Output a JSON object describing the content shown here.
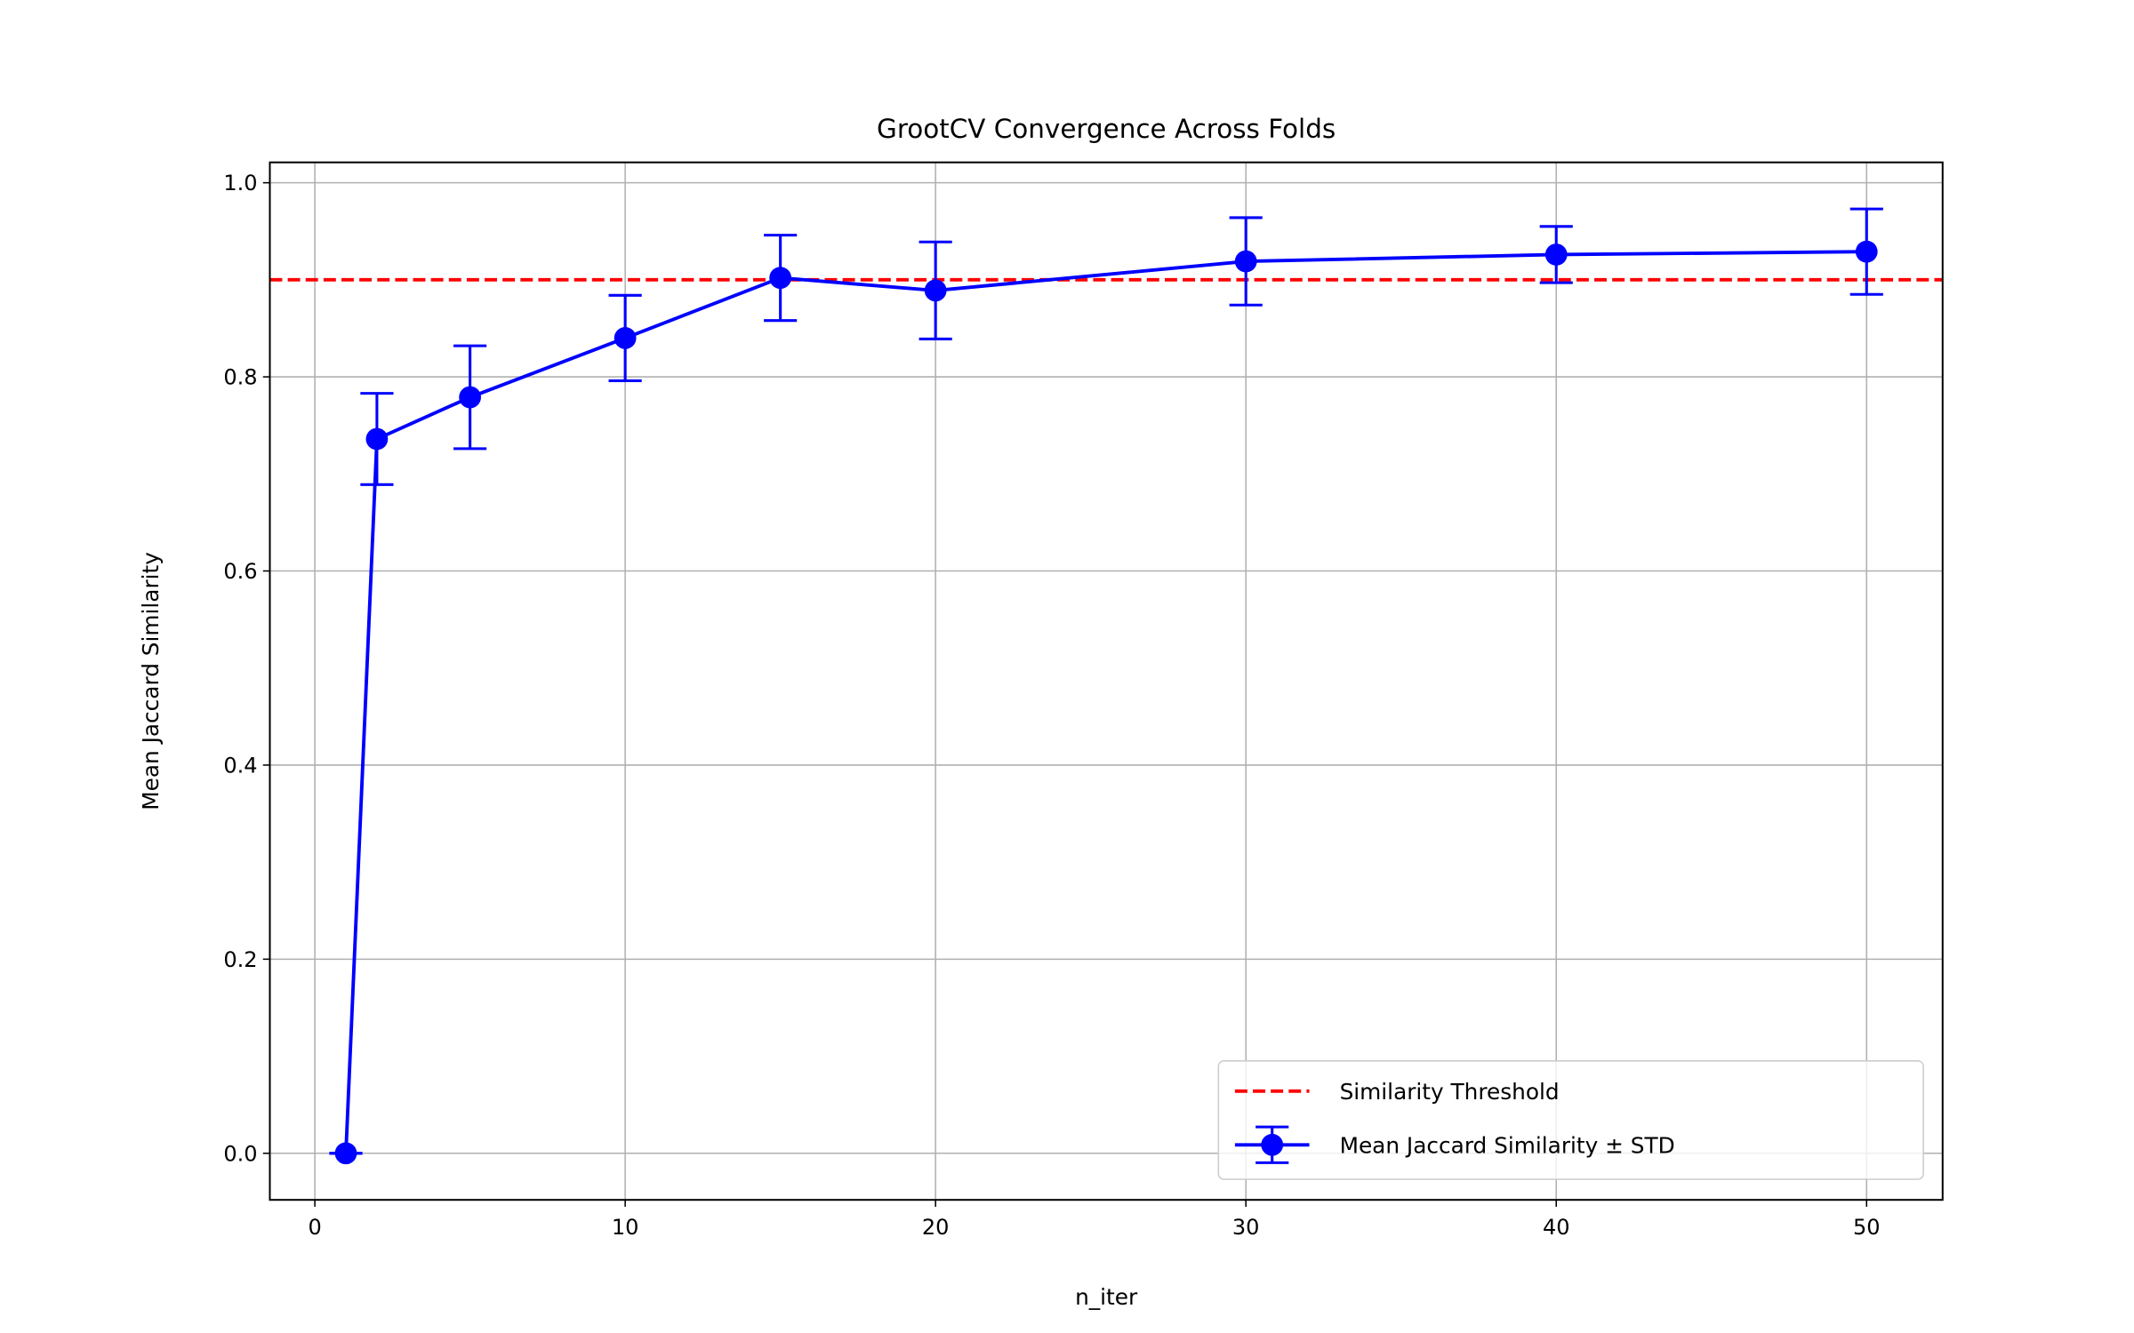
{
  "chart_data": {
    "type": "line",
    "title": "GrootCV Convergence Across Folds",
    "xlabel": "n_iter",
    "ylabel": "Mean Jaccard Similarity",
    "xlim": [
      -1.45,
      52.45
    ],
    "ylim": [
      -0.048,
      1.021
    ],
    "xticks": [
      0,
      10,
      20,
      30,
      40,
      50
    ],
    "xtick_labels": [
      "0",
      "10",
      "20",
      "30",
      "40",
      "50"
    ],
    "yticks": [
      0.0,
      0.2,
      0.4,
      0.6,
      0.8,
      1.0
    ],
    "ytick_labels": [
      "0.0",
      "0.2",
      "0.4",
      "0.6",
      "0.8",
      "1.0"
    ],
    "grid": true,
    "legend_position": "lower-right",
    "series": [
      {
        "name": "Mean Jaccard Similarity ± STD",
        "color": "#0000ff",
        "marker": "circle",
        "x": [
          1,
          2,
          5,
          10,
          15,
          20,
          30,
          40,
          50
        ],
        "y": [
          0.0,
          0.736,
          0.779,
          0.84,
          0.902,
          0.889,
          0.919,
          0.926,
          0.929
        ],
        "std": [
          0.0,
          0.047,
          0.053,
          0.044,
          0.044,
          0.05,
          0.045,
          0.029,
          0.044
        ]
      }
    ],
    "reference_lines": [
      {
        "name": "Similarity Threshold",
        "y": 0.9,
        "color": "#ff0000",
        "style": "dashed"
      }
    ]
  }
}
